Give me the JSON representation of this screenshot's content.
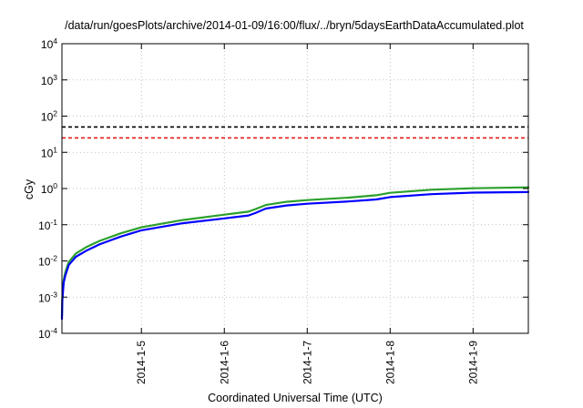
{
  "chart_data": {
    "type": "line",
    "title": "/data/run/goesPlots/archive/2014-01-09/16:00/flux/../bryn/5daysEarthDataAccumulated.plot",
    "xlabel": "Coordinated Universal Time (UTC)",
    "ylabel": "cGy",
    "x_range": [
      "2014-01-04T01:00",
      "2014-01-09T16:00"
    ],
    "x_ticks": [
      "2014-01-05T00:00",
      "2014-01-06T00:00",
      "2014-01-07T00:00",
      "2014-01-08T00:00",
      "2014-01-09T00:00"
    ],
    "x_tick_labels": [
      "2014-1-5",
      "2014-1-6",
      "2014-1-7",
      "2014-1-8",
      "2014-1-9"
    ],
    "y_scale": "log",
    "ylim": [
      0.0001,
      10000
    ],
    "y_ticks": [
      {
        "base": "10",
        "exp": "-4"
      },
      {
        "base": "10",
        "exp": "-3"
      },
      {
        "base": "10",
        "exp": "-2"
      },
      {
        "base": "10",
        "exp": "-1"
      },
      {
        "base": "10",
        "exp": "0"
      },
      {
        "base": "10",
        "exp": "1"
      },
      {
        "base": "10",
        "exp": "2"
      },
      {
        "base": "10",
        "exp": "3"
      },
      {
        "base": "10",
        "exp": "4"
      }
    ],
    "grid": true,
    "thresholds": [
      {
        "value": 50,
        "color": "#000000",
        "style": "dashed"
      },
      {
        "value": 25,
        "color": "#e41a1c",
        "style": "dashed"
      }
    ],
    "series": [
      {
        "color": "#2ca02c",
        "x": [
          "2014-01-04T01:00",
          "2014-01-04T01:06",
          "2014-01-04T01:30",
          "2014-01-04T02:00",
          "2014-01-04T03:00",
          "2014-01-04T05:00",
          "2014-01-04T08:00",
          "2014-01-04T12:00",
          "2014-01-04T18:00",
          "2014-01-05T00:00",
          "2014-01-05T12:00",
          "2014-01-06T00:00",
          "2014-01-06T07:00",
          "2014-01-06T09:00",
          "2014-01-06T12:00",
          "2014-01-06T18:00",
          "2014-01-07T00:00",
          "2014-01-07T12:00",
          "2014-01-07T20:00",
          "2014-01-08T00:00",
          "2014-01-08T12:00",
          "2014-01-09T00:00",
          "2014-01-09T16:00"
        ],
        "y": [
          0.0003,
          0.001,
          0.003,
          0.005,
          0.0095,
          0.016,
          0.024,
          0.036,
          0.058,
          0.085,
          0.135,
          0.19,
          0.23,
          0.27,
          0.35,
          0.43,
          0.48,
          0.56,
          0.65,
          0.76,
          0.93,
          1.02,
          1.08
        ]
      },
      {
        "color": "#0000ff",
        "x": [
          "2014-01-04T01:00",
          "2014-01-04T01:06",
          "2014-01-04T01:30",
          "2014-01-04T02:00",
          "2014-01-04T03:00",
          "2014-01-04T05:00",
          "2014-01-04T08:00",
          "2014-01-04T12:00",
          "2014-01-04T18:00",
          "2014-01-05T00:00",
          "2014-01-05T12:00",
          "2014-01-06T00:00",
          "2014-01-06T07:00",
          "2014-01-06T09:00",
          "2014-01-06T12:00",
          "2014-01-06T18:00",
          "2014-01-07T00:00",
          "2014-01-07T12:00",
          "2014-01-07T20:00",
          "2014-01-08T00:00",
          "2014-01-08T12:00",
          "2014-01-09T00:00",
          "2014-01-09T16:00"
        ],
        "y": [
          0.00025,
          0.0008,
          0.0025,
          0.004,
          0.0078,
          0.013,
          0.019,
          0.029,
          0.047,
          0.07,
          0.11,
          0.15,
          0.18,
          0.21,
          0.28,
          0.34,
          0.38,
          0.44,
          0.5,
          0.58,
          0.7,
          0.77,
          0.8
        ]
      }
    ]
  }
}
